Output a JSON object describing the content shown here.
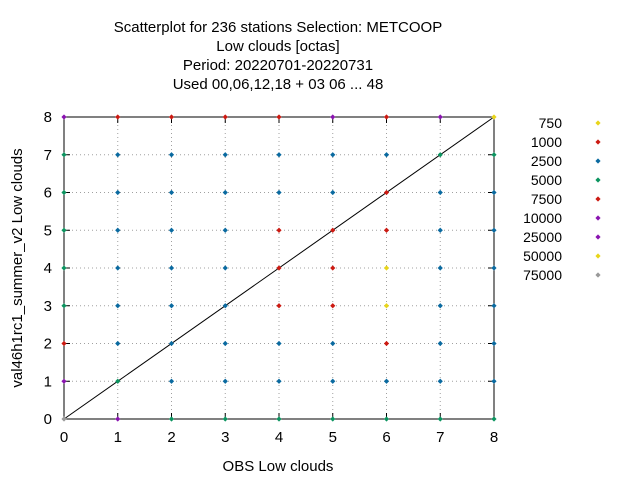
{
  "chart_data": {
    "type": "scatter",
    "title": [
      "Scatterplot for  236 stations Selection: METCOOP",
      "Low clouds [octas]",
      "Period: 20220701-20220731",
      "Used  00,06,12,18  + 03 06 ... 48"
    ],
    "xlabel": "OBS Low clouds",
    "ylabel": "val46h1rc1_summer_v2 Low clouds",
    "xlim": [
      0,
      8
    ],
    "ylim": [
      0,
      8
    ],
    "xticks": [
      "0",
      "1",
      "2",
      "3",
      "4",
      "5",
      "6",
      "7",
      "8"
    ],
    "yticks": [
      "0",
      "1",
      "2",
      "3",
      "4",
      "5",
      "6",
      "7",
      "8"
    ],
    "grid": true,
    "legend_position": "right",
    "diagonal": {
      "from": [
        0,
        0
      ],
      "to": [
        8,
        8
      ],
      "color": "#000000"
    },
    "series": [
      {
        "name": "750",
        "color": "#e8d51a",
        "points": []
      },
      {
        "name": "1000",
        "color": "#cc1a12",
        "points": []
      },
      {
        "name": "2500",
        "color": "#0a6aa0",
        "points": []
      },
      {
        "name": "5000",
        "color": "#0c9460",
        "points": []
      },
      {
        "name": "7500",
        "color": "#cc1a12",
        "points": []
      },
      {
        "name": "10000",
        "color": "#8a14b0",
        "points": []
      },
      {
        "name": "25000",
        "color": "#8a14b0",
        "points": []
      },
      {
        "name": "50000",
        "color": "#e8d51a",
        "points": []
      },
      {
        "name": "75000",
        "color": "#999999",
        "points": []
      }
    ],
    "points": [
      {
        "x": 0,
        "y": 0,
        "color": "#999999"
      },
      {
        "x": 0,
        "y": 1,
        "color": "#8a14b0"
      },
      {
        "x": 0,
        "y": 2,
        "color": "#cc1a12"
      },
      {
        "x": 0,
        "y": 3,
        "color": "#0c9460"
      },
      {
        "x": 0,
        "y": 4,
        "color": "#0c9460"
      },
      {
        "x": 0,
        "y": 5,
        "color": "#0c9460"
      },
      {
        "x": 0,
        "y": 6,
        "color": "#0c9460"
      },
      {
        "x": 0,
        "y": 7,
        "color": "#0c9460"
      },
      {
        "x": 0,
        "y": 8,
        "color": "#8a14b0"
      },
      {
        "x": 1,
        "y": 0,
        "color": "#8a14b0"
      },
      {
        "x": 1,
        "y": 1,
        "color": "#0c9460"
      },
      {
        "x": 1,
        "y": 2,
        "color": "#0a6aa0"
      },
      {
        "x": 1,
        "y": 3,
        "color": "#0a6aa0"
      },
      {
        "x": 1,
        "y": 4,
        "color": "#0a6aa0"
      },
      {
        "x": 1,
        "y": 5,
        "color": "#0a6aa0"
      },
      {
        "x": 1,
        "y": 6,
        "color": "#0a6aa0"
      },
      {
        "x": 1,
        "y": 7,
        "color": "#0a6aa0"
      },
      {
        "x": 1,
        "y": 8,
        "color": "#cc1a12"
      },
      {
        "x": 2,
        "y": 0,
        "color": "#0c9460"
      },
      {
        "x": 2,
        "y": 1,
        "color": "#0a6aa0"
      },
      {
        "x": 2,
        "y": 2,
        "color": "#0a6aa0"
      },
      {
        "x": 2,
        "y": 3,
        "color": "#0a6aa0"
      },
      {
        "x": 2,
        "y": 4,
        "color": "#0a6aa0"
      },
      {
        "x": 2,
        "y": 5,
        "color": "#0a6aa0"
      },
      {
        "x": 2,
        "y": 6,
        "color": "#0a6aa0"
      },
      {
        "x": 2,
        "y": 7,
        "color": "#0a6aa0"
      },
      {
        "x": 2,
        "y": 8,
        "color": "#cc1a12"
      },
      {
        "x": 3,
        "y": 0,
        "color": "#0c9460"
      },
      {
        "x": 3,
        "y": 1,
        "color": "#0a6aa0"
      },
      {
        "x": 3,
        "y": 2,
        "color": "#0a6aa0"
      },
      {
        "x": 3,
        "y": 3,
        "color": "#0a6aa0"
      },
      {
        "x": 3,
        "y": 4,
        "color": "#0a6aa0"
      },
      {
        "x": 3,
        "y": 5,
        "color": "#0a6aa0"
      },
      {
        "x": 3,
        "y": 6,
        "color": "#0a6aa0"
      },
      {
        "x": 3,
        "y": 7,
        "color": "#0a6aa0"
      },
      {
        "x": 3,
        "y": 8,
        "color": "#cc1a12"
      },
      {
        "x": 4,
        "y": 0,
        "color": "#0c9460"
      },
      {
        "x": 4,
        "y": 1,
        "color": "#0a6aa0"
      },
      {
        "x": 4,
        "y": 2,
        "color": "#0a6aa0"
      },
      {
        "x": 4,
        "y": 3,
        "color": "#cc1a12"
      },
      {
        "x": 4,
        "y": 4,
        "color": "#cc1a12"
      },
      {
        "x": 4,
        "y": 5,
        "color": "#cc1a12"
      },
      {
        "x": 4,
        "y": 6,
        "color": "#0a6aa0"
      },
      {
        "x": 4,
        "y": 7,
        "color": "#0a6aa0"
      },
      {
        "x": 4,
        "y": 8,
        "color": "#cc1a12"
      },
      {
        "x": 5,
        "y": 0,
        "color": "#0c9460"
      },
      {
        "x": 5,
        "y": 1,
        "color": "#0a6aa0"
      },
      {
        "x": 5,
        "y": 2,
        "color": "#0a6aa0"
      },
      {
        "x": 5,
        "y": 3,
        "color": "#cc1a12"
      },
      {
        "x": 5,
        "y": 4,
        "color": "#cc1a12"
      },
      {
        "x": 5,
        "y": 5,
        "color": "#cc1a12"
      },
      {
        "x": 5,
        "y": 6,
        "color": "#0a6aa0"
      },
      {
        "x": 5,
        "y": 7,
        "color": "#0a6aa0"
      },
      {
        "x": 5,
        "y": 8,
        "color": "#8a14b0"
      },
      {
        "x": 6,
        "y": 0,
        "color": "#0c9460"
      },
      {
        "x": 6,
        "y": 1,
        "color": "#0a6aa0"
      },
      {
        "x": 6,
        "y": 2,
        "color": "#cc1a12"
      },
      {
        "x": 6,
        "y": 3,
        "color": "#e8d51a"
      },
      {
        "x": 6,
        "y": 4,
        "color": "#e8d51a"
      },
      {
        "x": 6,
        "y": 5,
        "color": "#cc1a12"
      },
      {
        "x": 6,
        "y": 6,
        "color": "#cc1a12"
      },
      {
        "x": 6,
        "y": 7,
        "color": "#0a6aa0"
      },
      {
        "x": 6,
        "y": 8,
        "color": "#cc1a12"
      },
      {
        "x": 7,
        "y": 0,
        "color": "#0c9460"
      },
      {
        "x": 7,
        "y": 1,
        "color": "#0a6aa0"
      },
      {
        "x": 7,
        "y": 2,
        "color": "#0a6aa0"
      },
      {
        "x": 7,
        "y": 3,
        "color": "#0a6aa0"
      },
      {
        "x": 7,
        "y": 4,
        "color": "#0a6aa0"
      },
      {
        "x": 7,
        "y": 5,
        "color": "#0a6aa0"
      },
      {
        "x": 7,
        "y": 6,
        "color": "#0a6aa0"
      },
      {
        "x": 7,
        "y": 7,
        "color": "#0c9460"
      },
      {
        "x": 7,
        "y": 8,
        "color": "#8a14b0"
      },
      {
        "x": 8,
        "y": 0,
        "color": "#0c9460"
      },
      {
        "x": 8,
        "y": 1,
        "color": "#0a6aa0"
      },
      {
        "x": 8,
        "y": 2,
        "color": "#0a6aa0"
      },
      {
        "x": 8,
        "y": 3,
        "color": "#0a6aa0"
      },
      {
        "x": 8,
        "y": 4,
        "color": "#0a6aa0"
      },
      {
        "x": 8,
        "y": 5,
        "color": "#0a6aa0"
      },
      {
        "x": 8,
        "y": 6,
        "color": "#0a6aa0"
      },
      {
        "x": 8,
        "y": 7,
        "color": "#0c9460"
      },
      {
        "x": 8,
        "y": 8,
        "color": "#e8d51a"
      }
    ]
  }
}
